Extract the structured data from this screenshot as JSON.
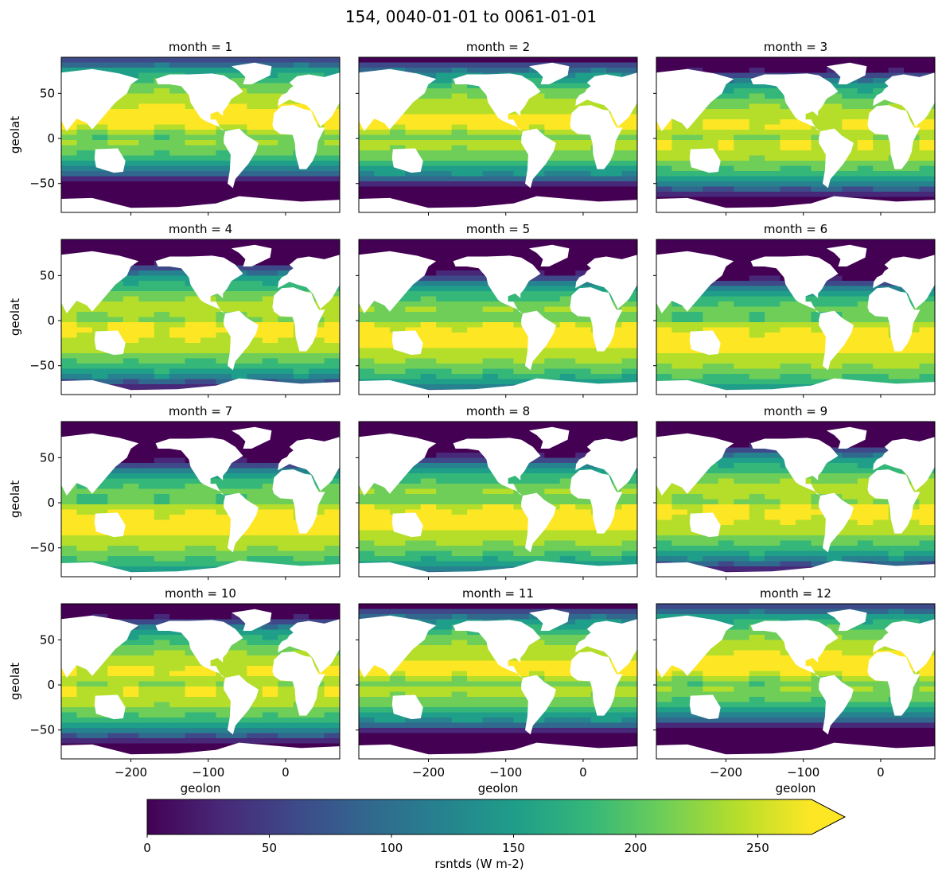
{
  "chart_data": {
    "type": "heatmap",
    "title": "154, 0040-01-01 to 0061-01-01",
    "variable": "rsntds",
    "panel_title_prefix": "month = ",
    "panels": [
      {
        "month": 1,
        "title": "month = 1"
      },
      {
        "month": 2,
        "title": "month = 2"
      },
      {
        "month": 3,
        "title": "month = 3"
      },
      {
        "month": 4,
        "title": "month = 4"
      },
      {
        "month": 5,
        "title": "month = 5"
      },
      {
        "month": 6,
        "title": "month = 6"
      },
      {
        "month": 7,
        "title": "month = 7"
      },
      {
        "month": 8,
        "title": "month = 8"
      },
      {
        "month": 9,
        "title": "month = 9"
      },
      {
        "month": 10,
        "title": "month = 10"
      },
      {
        "month": 11,
        "title": "month = 11"
      },
      {
        "month": 12,
        "title": "month = 12"
      }
    ],
    "xlabel": "geolon",
    "ylabel": "geolat",
    "xlim": [
      -290,
      70
    ],
    "ylim": [
      -82,
      90
    ],
    "xticks": [
      -200,
      -100,
      0
    ],
    "xtick_labels": [
      "−200",
      "−100",
      "0"
    ],
    "yticks": [
      50,
      0,
      -50
    ],
    "ytick_labels": [
      "50",
      "0",
      "−50"
    ],
    "colorbar": {
      "label": "rsntds (W m-2)",
      "vmin": 0,
      "vmax": 272,
      "extend": "max",
      "ticks": [
        0,
        50,
        100,
        150,
        200,
        250
      ],
      "tick_labels": [
        "0",
        "50",
        "100",
        "150",
        "200",
        "250"
      ],
      "colormap": "viridis"
    },
    "colors": {
      "viridis": [
        "#440154",
        "#482878",
        "#3e4989",
        "#31688e",
        "#26828e",
        "#1f9e89",
        "#35b779",
        "#6ece58",
        "#b5de2b",
        "#fde725"
      ],
      "land": "#ffffff"
    }
  }
}
